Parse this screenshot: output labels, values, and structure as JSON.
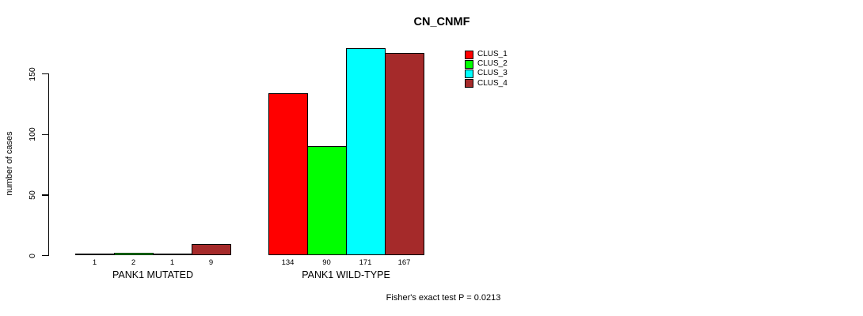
{
  "chart_data": {
    "type": "bar",
    "title": "CN_CNMF",
    "ylabel": "number of cases",
    "xlabel": "",
    "yticks": [
      0,
      50,
      100,
      150
    ],
    "ylim": [
      0,
      175
    ],
    "grid": false,
    "legend_position": "top-right",
    "series": [
      {
        "name": "CLUS_1",
        "color": "#FF0000"
      },
      {
        "name": "CLUS_2",
        "color": "#00FF00"
      },
      {
        "name": "CLUS_3",
        "color": "#00FFFF"
      },
      {
        "name": "CLUS_4",
        "color": "#A52A2A"
      }
    ],
    "groups": [
      {
        "label": "PANK1 MUTATED",
        "values": [
          1,
          2,
          1,
          9
        ]
      },
      {
        "label": "PANK1 WILD-TYPE",
        "values": [
          134,
          90,
          171,
          167
        ]
      }
    ],
    "annotation": "Fisher's exact test P = 0.0213",
    "axis_color": "#000000"
  }
}
